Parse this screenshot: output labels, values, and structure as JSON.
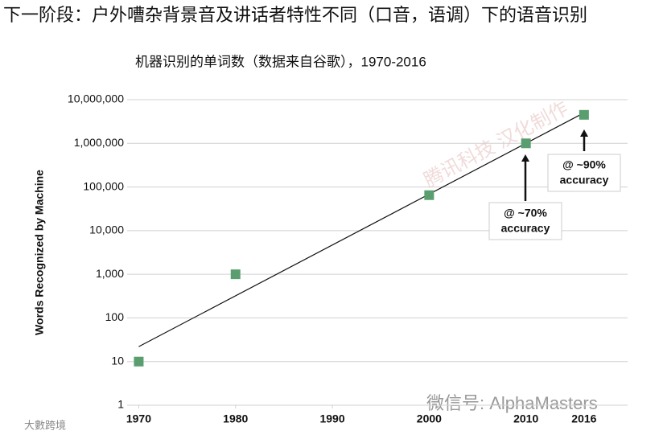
{
  "headline": "下一阶段：户外嘈杂背景音及讲话者特性不同（口音，语调）下的语音识别",
  "watermarks": [
    "腾讯科技 汉化制作",
    "微信号: AlphaMasters",
    "大數跨境"
  ],
  "chart_data": {
    "type": "scatter",
    "title": "机器识别的单词数（数据来自谷歌），1970-2016",
    "y_label": "Words Recognized by Machine",
    "log_y": true,
    "grid": true,
    "color": "#5a9e6f",
    "x": [
      1970,
      1980,
      2000,
      2010,
      2016
    ],
    "values": [
      10,
      1000,
      65000,
      1000000,
      4500000
    ],
    "trendline": {
      "x": [
        1970,
        2016
      ],
      "values": [
        22,
        5000000
      ]
    },
    "xlim": [
      1968.8,
      2020.5
    ],
    "xticks": [
      1970,
      1980,
      1990,
      2000,
      2010,
      2016
    ],
    "ylim": [
      1,
      10000000
    ],
    "yticks": [
      1,
      10,
      100,
      {
        "value": 1000,
        "label": "1,000"
      },
      {
        "value": 10000,
        "label": "10,000"
      },
      {
        "value": 100000,
        "label": "100,000"
      },
      {
        "value": 1000000,
        "label": "1,000,000"
      },
      {
        "value": 10000000,
        "label": "10,000,000"
      }
    ],
    "annotations": [
      [
        "@ ~70%",
        "accuracy"
      ],
      [
        "@ ~90%",
        "accuracy"
      ]
    ]
  }
}
